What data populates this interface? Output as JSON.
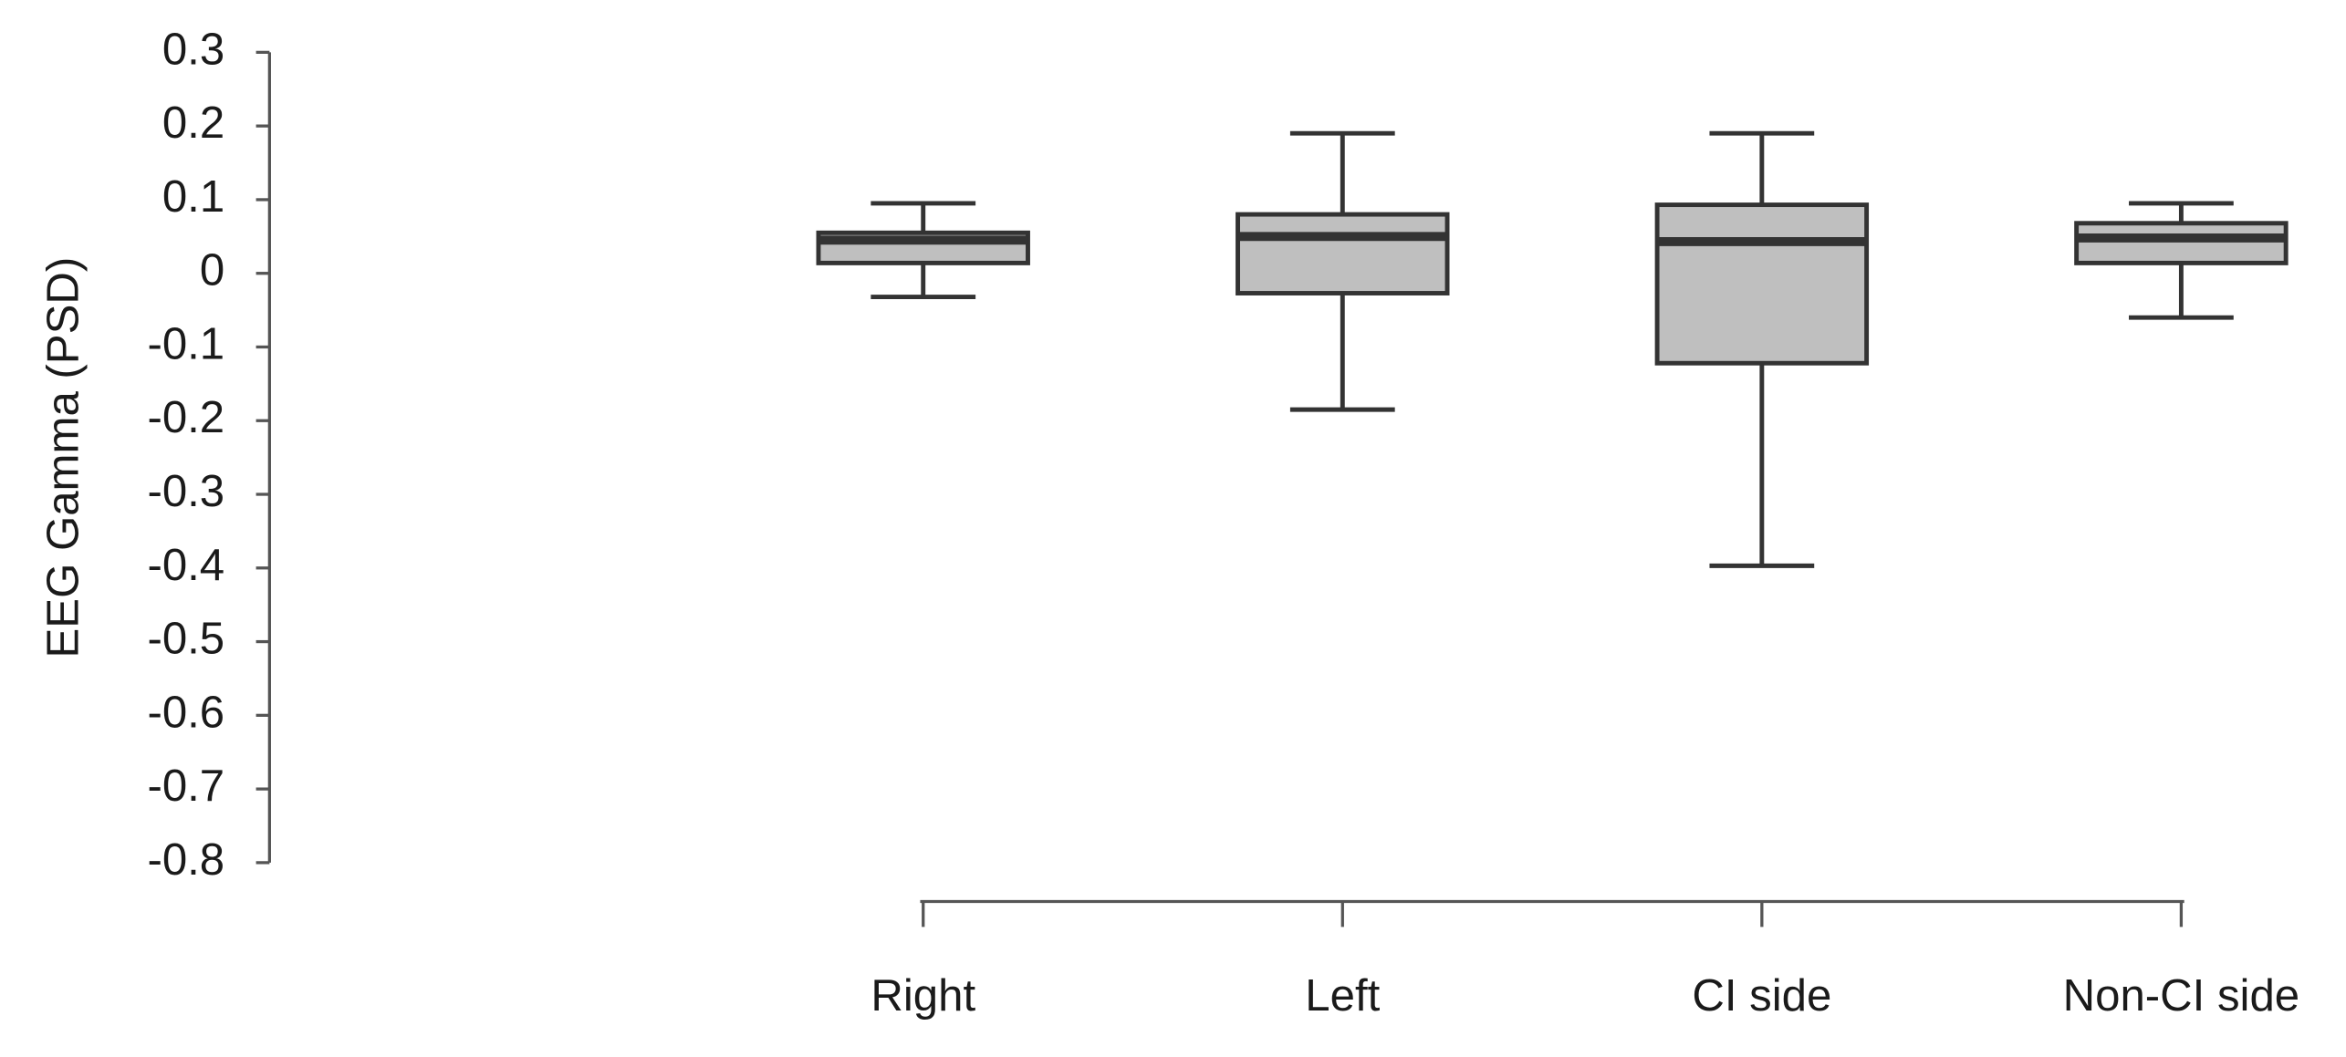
{
  "chart_data": {
    "type": "box",
    "y_label": "EEG Gamma (PSD)",
    "categories": [
      "Right",
      "Left",
      "CI side",
      "Non-CI side"
    ],
    "whisker_low": [
      -0.032,
      -0.185,
      -0.397,
      -0.06
    ],
    "q1": [
      0.014,
      -0.027,
      -0.122,
      0.014
    ],
    "median": [
      0.045,
      0.05,
      0.043,
      0.048
    ],
    "q3": [
      0.055,
      0.08,
      0.093,
      0.068
    ],
    "whisker_high": [
      0.095,
      0.19,
      0.19,
      0.095
    ],
    "color": "#bfbfbf",
    "ylim": [
      -0.8,
      0.3
    ],
    "yticks": [
      -0.8,
      -0.7,
      -0.6,
      -0.5,
      -0.4,
      -0.3,
      -0.2,
      -0.1,
      0,
      0.1,
      0.2,
      0.3
    ],
    "grid": false
  }
}
